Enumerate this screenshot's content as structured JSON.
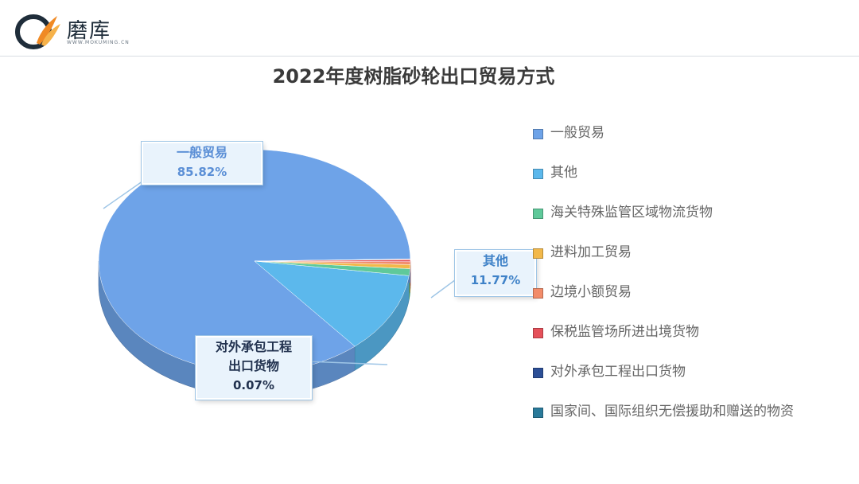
{
  "brand": {
    "name": "磨库",
    "subtitle": "WWW.MOKUMING.CN"
  },
  "chart_data": {
    "type": "pie",
    "title": "2022年度树脂砂轮出口贸易方式",
    "slices": [
      {
        "label": "一般贸易",
        "value": 85.82,
        "color": "#6ea3e8"
      },
      {
        "label": "其他",
        "value": 11.77,
        "color": "#5cb8ec"
      },
      {
        "label": "海关特殊监管区域物流货物",
        "value": 1.0,
        "color": "#5fc99a"
      },
      {
        "label": "进料加工贸易",
        "value": 0.6,
        "color": "#f2b84a"
      },
      {
        "label": "边境小额贸易",
        "value": 0.4,
        "color": "#f28c6a"
      },
      {
        "label": "保税监管场所进出境货物",
        "value": 0.3,
        "color": "#e5515a"
      },
      {
        "label": "对外承包工程出口货物",
        "value": 0.07,
        "color": "#2c4f96"
      },
      {
        "label": "国家间、国际组织无偿援助和赠送的物资",
        "value": 0.04,
        "color": "#2a7a9a"
      }
    ],
    "callouts": [
      {
        "label": "一般贸易",
        "value_text": "85.82%",
        "color": "#5b8fd6"
      },
      {
        "label": "其他",
        "value_text": "11.77%",
        "color": "#3f82c8"
      },
      {
        "label_lines": [
          "对外承包工程",
          "出口货物"
        ],
        "value_text": "0.07%",
        "color": "#22324f"
      }
    ],
    "legend": [
      {
        "label": "一般贸易",
        "color": "#6ea3e8"
      },
      {
        "label": "其他",
        "color": "#5cb8ec"
      },
      {
        "label": "海关特殊监管区域物流货物",
        "color": "#5fc99a"
      },
      {
        "label": "进料加工贸易",
        "color": "#f2b84a"
      },
      {
        "label": "边境小额贸易",
        "color": "#f28c6a"
      },
      {
        "label": "保税监管场所进出境货物",
        "color": "#e5515a"
      },
      {
        "label": "对外承包工程出口货物",
        "color": "#2c4f96"
      },
      {
        "label": "国家间、国际组织无偿援助和赠送的物资",
        "color": "#2a7a9a"
      }
    ],
    "legend_position": "right"
  }
}
